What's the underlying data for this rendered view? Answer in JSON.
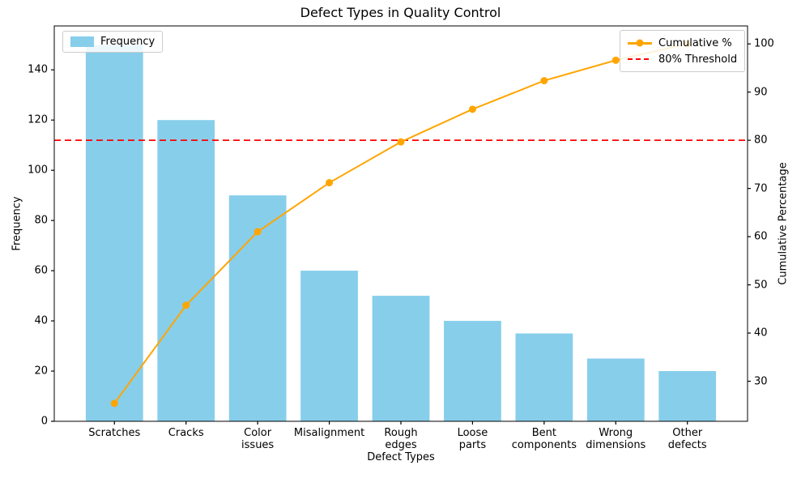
{
  "chart_data": {
    "type": "pareto (bar + cumulative line)",
    "title": "Defect Types in Quality Control",
    "xlabel": "Defect Types",
    "ylabel_left": "Frequency",
    "ylabel_right": "Cumulative Percentage",
    "categories": [
      "Scratches",
      "Cracks",
      "Color issues",
      "Misalignment",
      "Rough edges",
      "Loose parts",
      "Bent components",
      "Wrong dimensions",
      "Other defects"
    ],
    "frequencies": [
      150,
      120,
      90,
      60,
      50,
      40,
      35,
      25,
      20
    ],
    "cumulative_pct": [
      25.42,
      45.76,
      61.02,
      71.19,
      79.66,
      86.44,
      92.37,
      96.61,
      100.0
    ],
    "threshold_pct": 80,
    "ylim_left": [
      0,
      157.5
    ],
    "ylim_right": [
      21.69,
      103.73
    ],
    "yticks_left": [
      0,
      20,
      40,
      60,
      80,
      100,
      120,
      140
    ],
    "yticks_right": [
      30,
      40,
      50,
      60,
      70,
      80,
      90,
      100
    ],
    "legend": {
      "frequency": "Frequency",
      "cumulative": "Cumulative %",
      "threshold": "80% Threshold"
    },
    "legend_position": {
      "frequency": "upper left",
      "cumulative": "upper right"
    },
    "grid": false,
    "colors": {
      "bar": "#87CEEB",
      "line": "#FFA500",
      "threshold": "#FF0000",
      "text": "#000000",
      "spine": "#000000"
    }
  }
}
